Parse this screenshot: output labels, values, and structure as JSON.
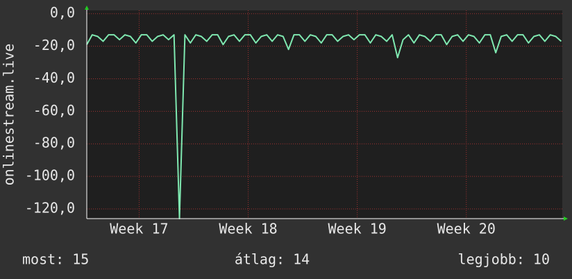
{
  "chart_data": {
    "type": "line",
    "y_label": "onlinestream.live",
    "x": [
      16.52,
      16.57,
      16.62,
      16.67,
      16.72,
      16.77,
      16.82,
      16.87,
      16.92,
      16.97,
      17.02,
      17.07,
      17.12,
      17.17,
      17.22,
      17.27,
      17.32,
      17.37,
      17.42,
      17.47,
      17.52,
      17.57,
      17.62,
      17.67,
      17.72,
      17.77,
      17.82,
      17.87,
      17.92,
      17.97,
      18.02,
      18.07,
      18.12,
      18.17,
      18.22,
      18.27,
      18.32,
      18.37,
      18.42,
      18.47,
      18.52,
      18.57,
      18.62,
      18.67,
      18.72,
      18.77,
      18.82,
      18.87,
      18.92,
      18.97,
      19.02,
      19.07,
      19.12,
      19.17,
      19.22,
      19.27,
      19.32,
      19.37,
      19.42,
      19.47,
      19.52,
      19.57,
      19.62,
      19.67,
      19.72,
      19.77,
      19.82,
      19.87,
      19.92,
      19.97,
      20.02,
      20.07,
      20.12,
      20.17,
      20.22,
      20.27,
      20.32,
      20.37,
      20.42,
      20.47,
      20.52,
      20.57,
      20.62,
      20.67,
      20.72,
      20.77,
      20.82,
      20.87
    ],
    "series": [
      {
        "color": "#7fe8b0",
        "values": [
          -19,
          -13,
          -14,
          -17,
          -13,
          -13,
          -16,
          -13,
          -14,
          -18,
          -13,
          -13,
          -17,
          -14,
          -13,
          -16,
          -13,
          -126,
          -13,
          -18,
          -13,
          -14,
          -17,
          -13,
          -13,
          -19,
          -14,
          -13,
          -17,
          -13,
          -13,
          -18,
          -14,
          -13,
          -17,
          -13,
          -14,
          -22,
          -13,
          -13,
          -17,
          -13,
          -14,
          -18,
          -13,
          -13,
          -17,
          -14,
          -13,
          -16,
          -13,
          -13,
          -18,
          -13,
          -14,
          -17,
          -13,
          -27,
          -16,
          -13,
          -18,
          -13,
          -14,
          -17,
          -13,
          -13,
          -19,
          -14,
          -13,
          -17,
          -13,
          -14,
          -18,
          -13,
          -13,
          -24,
          -14,
          -13,
          -17,
          -13,
          -13,
          -18,
          -14,
          -13,
          -17,
          -13,
          -14,
          -17
        ]
      }
    ],
    "xlim": [
      16.52,
      20.88
    ],
    "xticks": [
      {
        "value": 17,
        "label": "Week 17"
      },
      {
        "value": 18,
        "label": "Week 18"
      },
      {
        "value": 19,
        "label": "Week 19"
      },
      {
        "value": 20,
        "label": "Week 20"
      }
    ],
    "ylim": [
      -126,
      2
    ],
    "yticks": [
      {
        "value": 0,
        "label": "0,0"
      },
      {
        "value": -20,
        "label": "-20,0"
      },
      {
        "value": -40,
        "label": "-40,0"
      },
      {
        "value": -60,
        "label": "-60,0"
      },
      {
        "value": -80,
        "label": "-80,0"
      },
      {
        "value": -100,
        "label": "-100,0"
      },
      {
        "value": -120,
        "label": "-120,0"
      }
    ],
    "grid": true,
    "footer": [
      "most: 15",
      "átlag: 14",
      "legjobb: 10"
    ]
  }
}
